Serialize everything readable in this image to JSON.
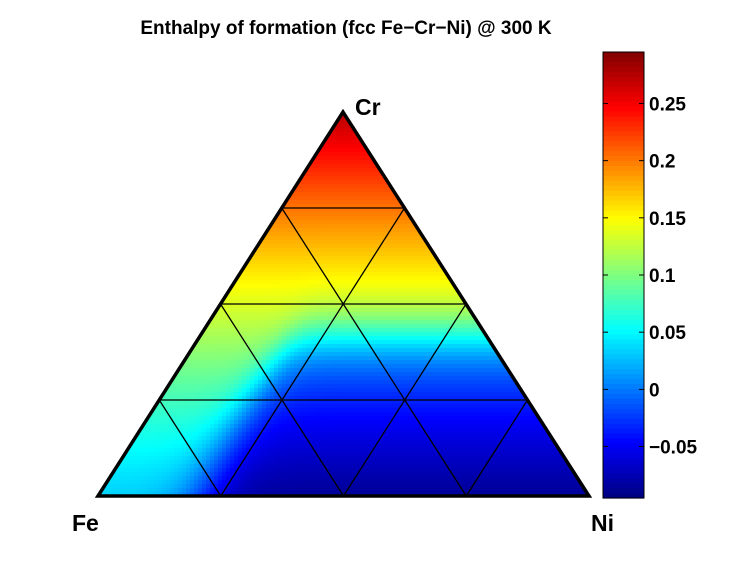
{
  "chart_data": {
    "type": "heatmap",
    "title": "Enthalpy of formation (fcc Fe−Cr−Ni) @ 300 K",
    "plot": "ternary",
    "vertices": {
      "left": "Fe",
      "top": "Cr",
      "right": "Ni"
    },
    "grid_divisions": 4,
    "grid": true,
    "colormap": "jet",
    "colorbar": {
      "placement": "right",
      "range": [
        -0.095,
        0.295
      ],
      "ticks": [
        -0.05,
        0,
        0.05,
        0.1,
        0.15,
        0.2,
        0.25
      ],
      "tick_labels": [
        "−0.05",
        "0",
        "0.05",
        "0.1",
        "0.15",
        "0.2",
        "0.25"
      ]
    }
  }
}
